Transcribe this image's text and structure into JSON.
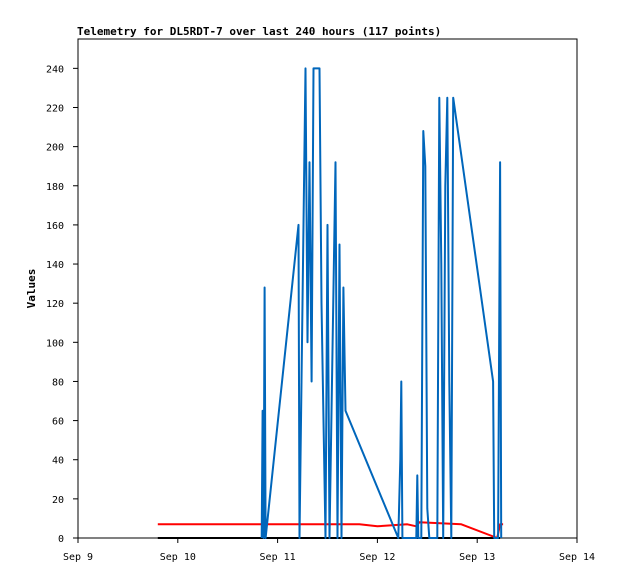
{
  "chart_data": {
    "type": "line",
    "title": "Telemetry for DL5RDT-7 over last 240 hours (117 points)",
    "xlabel": "",
    "ylabel": "Values",
    "x_ticks": [
      "Sep 9",
      "Sep 10",
      "Sep 11",
      "Sep 12",
      "Sep 13",
      "Sep 14"
    ],
    "xlim": [
      "2024-09-09T00:00",
      "2024-09-14T00:00"
    ],
    "y_ticks": [
      0,
      20,
      40,
      60,
      80,
      100,
      120,
      140,
      160,
      180,
      200,
      220,
      240
    ],
    "ylim": [
      0,
      255
    ],
    "grid": false,
    "legend": "none",
    "series": [
      {
        "color": "#000000",
        "points": [
          [
            "2024-09-09T19:12",
            0
          ],
          [
            "2024-09-13T05:31",
            0
          ]
        ]
      },
      {
        "color": "#ff0000",
        "points": [
          [
            "2024-09-09T19:12",
            7
          ],
          [
            "2024-09-11T19:40",
            7
          ],
          [
            "2024-09-12T00:00",
            6
          ],
          [
            "2024-09-12T07:12",
            7
          ],
          [
            "2024-09-12T09:21",
            6
          ],
          [
            "2024-09-12T10:05",
            8
          ],
          [
            "2024-09-12T20:10",
            7
          ],
          [
            "2024-09-13T04:48",
            0
          ],
          [
            "2024-09-13T05:31",
            7
          ],
          [
            "2024-09-13T06:14",
            7
          ]
        ]
      },
      {
        "color": "#0066bb",
        "points": [
          [
            "2024-09-10T20:10",
            0
          ],
          [
            "2024-09-10T20:24",
            65
          ],
          [
            "2024-09-10T20:38",
            0
          ],
          [
            "2024-09-10T20:52",
            128
          ],
          [
            "2024-09-10T21:07",
            0
          ],
          [
            "2024-09-11T05:02",
            160
          ],
          [
            "2024-09-11T05:16",
            0
          ],
          [
            "2024-09-11T06:43",
            240
          ],
          [
            "2024-09-11T07:12",
            100
          ],
          [
            "2024-09-11T07:41",
            192
          ],
          [
            "2024-09-11T08:10",
            80
          ],
          [
            "2024-09-11T08:38",
            240
          ],
          [
            "2024-09-11T10:05",
            240
          ],
          [
            "2024-09-11T10:34",
            120
          ],
          [
            "2024-09-11T11:31",
            0
          ],
          [
            "2024-09-11T12:00",
            160
          ],
          [
            "2024-09-11T12:29",
            0
          ],
          [
            "2024-09-11T13:55",
            192
          ],
          [
            "2024-09-11T14:24",
            0
          ],
          [
            "2024-09-11T14:53",
            150
          ],
          [
            "2024-09-11T15:22",
            0
          ],
          [
            "2024-09-11T15:50",
            128
          ],
          [
            "2024-09-11T16:19",
            65
          ],
          [
            "2024-09-12T05:02",
            0
          ],
          [
            "2024-09-12T05:31",
            40
          ],
          [
            "2024-09-12T05:45",
            80
          ],
          [
            "2024-09-12T06:00",
            0
          ],
          [
            "2024-09-12T09:21",
            0
          ],
          [
            "2024-09-12T09:36",
            32
          ],
          [
            "2024-09-12T09:50",
            0
          ],
          [
            "2024-09-12T10:34",
            0
          ],
          [
            "2024-09-12T11:02",
            208
          ],
          [
            "2024-09-12T11:31",
            190
          ],
          [
            "2024-09-12T12:00",
            15
          ],
          [
            "2024-09-12T12:29",
            0
          ],
          [
            "2024-09-12T14:24",
            0
          ],
          [
            "2024-09-12T14:53",
            225
          ],
          [
            "2024-09-12T15:22",
            140
          ],
          [
            "2024-09-12T15:50",
            0
          ],
          [
            "2024-09-12T16:19",
            180
          ],
          [
            "2024-09-12T16:48",
            225
          ],
          [
            "2024-09-12T17:17",
            80
          ],
          [
            "2024-09-12T17:46",
            0
          ],
          [
            "2024-09-12T18:14",
            225
          ],
          [
            "2024-09-13T03:50",
            80
          ],
          [
            "2024-09-13T04:05",
            0
          ],
          [
            "2024-09-13T05:02",
            0
          ],
          [
            "2024-09-13T05:31",
            192
          ],
          [
            "2024-09-13T05:46",
            0
          ]
        ]
      }
    ]
  }
}
